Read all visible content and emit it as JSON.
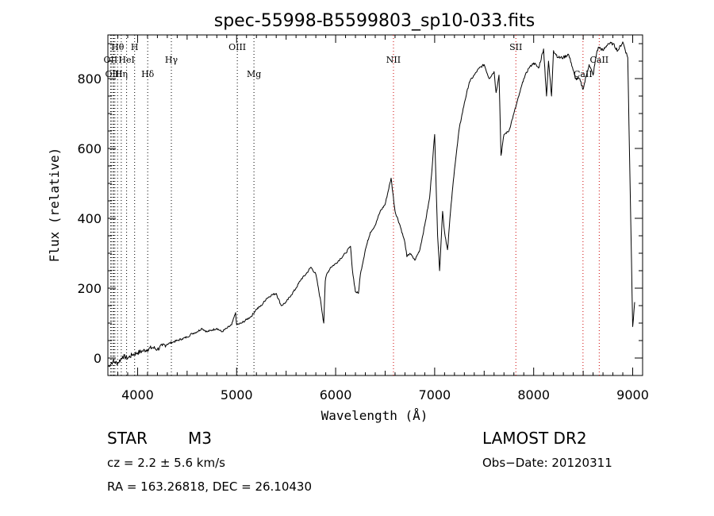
{
  "chart_data": {
    "type": "line",
    "title": "spec-55998-B5599803_sp10-033.fits",
    "xlabel": "Wavelength (Å)",
    "ylabel": "Flux (relative)",
    "xlim": [
      3700,
      9100
    ],
    "ylim": [
      -50,
      925
    ],
    "xticks": [
      4000,
      5000,
      6000,
      7000,
      8000,
      9000
    ],
    "yticks": [
      0,
      200,
      400,
      600,
      800
    ],
    "grid": false,
    "series": [
      {
        "x": [
          3700,
          3750,
          3800,
          3850,
          3900,
          3950,
          4000,
          4050,
          4100,
          4150,
          4200,
          4250,
          4300,
          4350,
          4400,
          4450,
          4500,
          4550,
          4600,
          4650,
          4700,
          4750,
          4800,
          4850,
          4900,
          4950,
          4990,
          5000,
          5050,
          5100,
          5150,
          5200,
          5250,
          5300,
          5350,
          5400,
          5450,
          5500,
          5550,
          5600,
          5650,
          5700,
          5750,
          5800,
          5850,
          5880,
          5895,
          5910,
          5950,
          6000,
          6050,
          6100,
          6150,
          6170,
          6200,
          6230,
          6250,
          6300,
          6350,
          6400,
          6450,
          6500,
          6560,
          6600,
          6650,
          6700,
          6720,
          6750,
          6800,
          6850,
          6900,
          6950,
          7000,
          7030,
          7050,
          7080,
          7100,
          7130,
          7160,
          7200,
          7250,
          7300,
          7350,
          7400,
          7450,
          7500,
          7550,
          7600,
          7620,
          7650,
          7670,
          7700,
          7750,
          7800,
          7850,
          7900,
          7950,
          8000,
          8050,
          8100,
          8130,
          8150,
          8180,
          8200,
          8250,
          8300,
          8350,
          8380,
          8420,
          8460,
          8500,
          8540,
          8560,
          8600,
          8640,
          8660,
          8700,
          8750,
          8800,
          8850,
          8900,
          8950,
          9000,
          9020
        ],
        "y": [
          -25,
          -10,
          -15,
          5,
          0,
          10,
          15,
          20,
          25,
          30,
          25,
          35,
          40,
          45,
          50,
          55,
          60,
          70,
          75,
          85,
          75,
          80,
          85,
          75,
          85,
          95,
          130,
          95,
          100,
          110,
          120,
          140,
          150,
          170,
          180,
          185,
          150,
          160,
          180,
          200,
          225,
          240,
          260,
          240,
          160,
          100,
          220,
          240,
          260,
          270,
          285,
          300,
          320,
          250,
          190,
          185,
          240,
          310,
          360,
          380,
          420,
          440,
          515,
          420,
          380,
          330,
          290,
          300,
          280,
          310,
          380,
          460,
          640,
          350,
          250,
          420,
          360,
          310,
          420,
          540,
          660,
          730,
          790,
          810,
          830,
          840,
          800,
          820,
          760,
          810,
          580,
          640,
          650,
          700,
          750,
          800,
          830,
          845,
          830,
          885,
          750,
          850,
          750,
          880,
          860,
          860,
          870,
          845,
          800,
          800,
          770,
          820,
          840,
          810,
          880,
          890,
          880,
          900,
          900,
          880,
          905,
          860,
          90,
          160
        ]
      }
    ],
    "lines": [
      {
        "label": "Hθ",
        "x": 3798,
        "row": 1,
        "color": "#000000"
      },
      {
        "label": "H",
        "x": 3970,
        "row": 1,
        "color": "#000000"
      },
      {
        "label": "OII",
        "x": 3727,
        "row": 2,
        "color": "#000000"
      },
      {
        "label": "HeI",
        "x": 3889,
        "row": 2,
        "color": "#000000"
      },
      {
        "label": "Hγ",
        "x": 4341,
        "row": 2,
        "color": "#000000"
      },
      {
        "label": "OIII",
        "x": 3760,
        "row": 3,
        "color": "#000000"
      },
      {
        "label": "Hη",
        "x": 3835,
        "row": 3,
        "color": "#000000"
      },
      {
        "label": "Hδ",
        "x": 4102,
        "row": 3,
        "color": "#000000"
      },
      {
        "label": "OIII",
        "x": 5007,
        "row": 1,
        "color": "#000000"
      },
      {
        "label": "Mg",
        "x": 5175,
        "row": 3,
        "color": "#000000"
      },
      {
        "label": "NII",
        "x": 6584,
        "row": 2,
        "color": "#cc0000"
      },
      {
        "label": "SII",
        "x": 7820,
        "row": 1,
        "color": "#cc0000"
      },
      {
        "label": "CaII",
        "x": 8498,
        "row": 3,
        "color": "#cc0000"
      },
      {
        "label": "CaII",
        "x": 8662,
        "row": 2,
        "color": "#cc0000"
      }
    ],
    "extra_dotted_x": [
      3700,
      3734,
      3750,
      3771,
      3798,
      3835,
      3889,
      3970,
      4102,
      4341,
      5007,
      5175,
      6584,
      7820,
      8498,
      8662
    ]
  },
  "info": {
    "obj_class": "STAR",
    "obj_subclass": "M3",
    "survey": "LAMOST DR2",
    "cz": "cz = 2.2 ± 5.6 km/s",
    "obs_date": "Obs−Date: 20120311",
    "radec": "RA = 163.26818, DEC =  26.10430"
  }
}
